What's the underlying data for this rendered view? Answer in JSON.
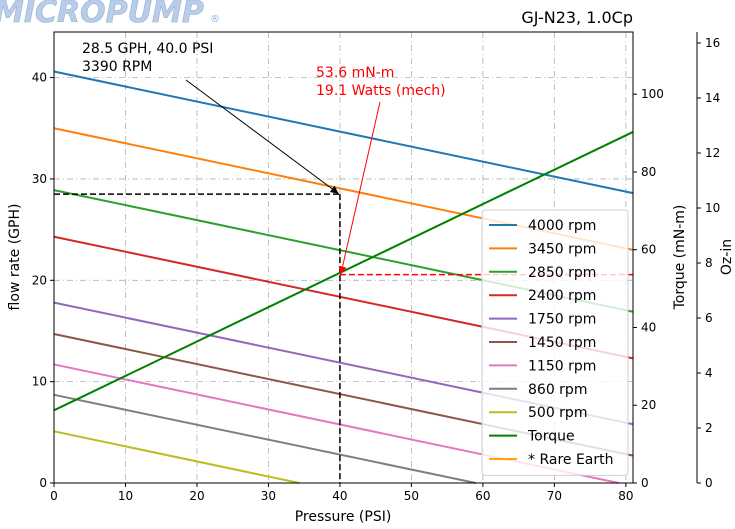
{
  "brand": {
    "logo_text": "MICROPUMP",
    "registered_mark": "®"
  },
  "chart_data": {
    "type": "line",
    "title": "GJ-N23,  1.0Cp",
    "xlabel": "Pressure (PSI)",
    "ylabel": "flow rate (GPH)",
    "y2label": "Torque (mN-m)",
    "y3label": "Oz-in",
    "xlim": [
      0,
      81
    ],
    "ylim": [
      0,
      44.5
    ],
    "y2lim": [
      0,
      116
    ],
    "y3lim": [
      0,
      16.4
    ],
    "xticks": [
      0,
      10,
      20,
      30,
      40,
      50,
      60,
      70,
      80
    ],
    "yticks": [
      0,
      10,
      20,
      30,
      40
    ],
    "y2ticks": [
      0,
      20,
      40,
      60,
      80,
      100
    ],
    "y3ticks": [
      0,
      2,
      4,
      6,
      8,
      10,
      12,
      14,
      16
    ],
    "grid": true,
    "legend_position": "lower-right",
    "series": [
      {
        "name": "4000 rpm",
        "axis": "flow",
        "color": "#1f77b4",
        "x": [
          0,
          81
        ],
        "y": [
          40.6,
          28.6
        ]
      },
      {
        "name": "3450 rpm",
        "axis": "flow",
        "color": "#ff7f0e",
        "x": [
          0,
          81
        ],
        "y": [
          35.0,
          23.0
        ]
      },
      {
        "name": "2850 rpm",
        "axis": "flow",
        "color": "#2ca02c",
        "x": [
          0,
          81
        ],
        "y": [
          28.9,
          16.9
        ]
      },
      {
        "name": "2400 rpm",
        "axis": "flow",
        "color": "#d62728",
        "x": [
          0,
          81
        ],
        "y": [
          24.3,
          12.3
        ]
      },
      {
        "name": "1750 rpm",
        "axis": "flow",
        "color": "#9467bd",
        "x": [
          0,
          81
        ],
        "y": [
          17.8,
          5.8
        ]
      },
      {
        "name": "1450 rpm",
        "axis": "flow",
        "color": "#8c564b",
        "x": [
          0,
          81
        ],
        "y": [
          14.7,
          2.7
        ]
      },
      {
        "name": "1150 rpm",
        "axis": "flow",
        "color": "#e377c2",
        "x": [
          0,
          79.0
        ],
        "y": [
          11.7,
          0
        ]
      },
      {
        "name": "860 rpm",
        "axis": "flow",
        "color": "#7f7f7f",
        "x": [
          0,
          59.0
        ],
        "y": [
          8.7,
          0
        ]
      },
      {
        "name": "500 rpm",
        "axis": "flow",
        "color": "#bcbd22",
        "x": [
          0,
          34.3
        ],
        "y": [
          5.1,
          0
        ]
      },
      {
        "name": "Torque",
        "axis": "torque",
        "color": "#008000",
        "x": [
          0,
          81
        ],
        "y": [
          18.7,
          90.3
        ]
      },
      {
        "name": "* Rare Earth",
        "axis": "torque",
        "color": "#ffa500",
        "legend_only": true
      }
    ],
    "operating_point": {
      "pressure": 40.0,
      "flow": 28.5,
      "torque": 53.6
    },
    "annotations": [
      {
        "lines": [
          "28.5  GPH,  40.0  PSI",
          "3390 RPM"
        ],
        "color": "#000000"
      },
      {
        "lines": [
          "53.6 mN-m",
          "19.1 Watts (mech)"
        ],
        "color": "#ff0000"
      }
    ]
  }
}
